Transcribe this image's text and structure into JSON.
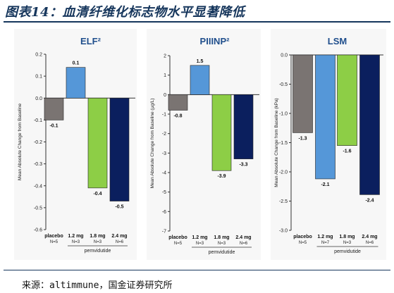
{
  "figure": {
    "title": "图表14：血清纤维化标志物水平显著降低",
    "source": "来源：altimmune，国金证券研究所"
  },
  "colors": {
    "title": "#16365c",
    "panel_title": "#1f4e8c",
    "placebo": "#7a7472",
    "dose_1_2": "#5597d8",
    "dose_1_8": "#8dce46",
    "dose_2_4": "#0b1f5e",
    "panel_bg": "#f7f7f7"
  },
  "chart_data": [
    {
      "type": "bar",
      "title": "ELF²",
      "ylabel": "Mean Absolute Change from Baseline",
      "ylim": [
        -0.6,
        0.2
      ],
      "yticks": [
        0.2,
        0.1,
        0.0,
        -0.1,
        -0.2,
        -0.3,
        -0.4,
        -0.5,
        -0.6
      ],
      "ytick_labels": [
        "0.2",
        "0.1",
        "0.0",
        "-0.1",
        "-0.2",
        "-0.3",
        "-0.4",
        "-0.5",
        "-0.6"
      ],
      "categories": [
        "placebo",
        "1.2 mg",
        "1.8 mg",
        "2.4 mg"
      ],
      "n_labels": [
        "N=5",
        "N=3",
        "N=3",
        "N=6"
      ],
      "group_label": "pemvidutide",
      "values": [
        -0.1,
        0.14,
        -0.41,
        -0.47
      ],
      "data_labels": [
        "-0.1",
        "0.1",
        "-0.4",
        "-0.5"
      ]
    },
    {
      "type": "bar",
      "title": "PIIINP²",
      "ylabel": "Mean Absolute Change from Baseline (µg/L)",
      "ylim": [
        -7,
        2
      ],
      "yticks": [
        2,
        1,
        0,
        -1,
        -2,
        -3,
        -4,
        -5,
        -6,
        -7
      ],
      "ytick_labels": [
        "2",
        "1",
        "0",
        "-1",
        "-2",
        "-3",
        "-4",
        "-5",
        "-6",
        "-7"
      ],
      "categories": [
        "placebo",
        "1.2 mg",
        "1.8 mg",
        "2.4 mg"
      ],
      "n_labels": [
        "N=5",
        "N=3",
        "N=3",
        "N=6"
      ],
      "group_label": "pemvidutide",
      "values": [
        -0.8,
        1.5,
        -3.9,
        -3.3
      ],
      "data_labels": [
        "-0.8",
        "1.5",
        "-3.9",
        "-3.3"
      ]
    },
    {
      "type": "bar",
      "title": "LSM",
      "ylabel": "Mean Absolute Change from Baseline (kPa)",
      "ylim": [
        -3.0,
        0.0
      ],
      "yticks": [
        0.0,
        -0.5,
        -1.0,
        -1.5,
        -2.0,
        -2.5,
        -3.0
      ],
      "ytick_labels": [
        "0.0",
        "-0.5",
        "-1.0",
        "-1.5",
        "-2.0",
        "-2.5",
        "-3.0"
      ],
      "categories": [
        "placebo",
        "1.2 mg",
        "1.8 mg",
        "2.4 mg"
      ],
      "n_labels": [
        "N=5",
        "N=7",
        "N=3",
        "N=6"
      ],
      "group_label": "pemvidutide",
      "values": [
        -1.33,
        -2.12,
        -1.55,
        -2.39
      ],
      "data_labels": [
        "-1.3",
        "-2.1",
        "-1.6",
        "-2.4"
      ]
    }
  ]
}
